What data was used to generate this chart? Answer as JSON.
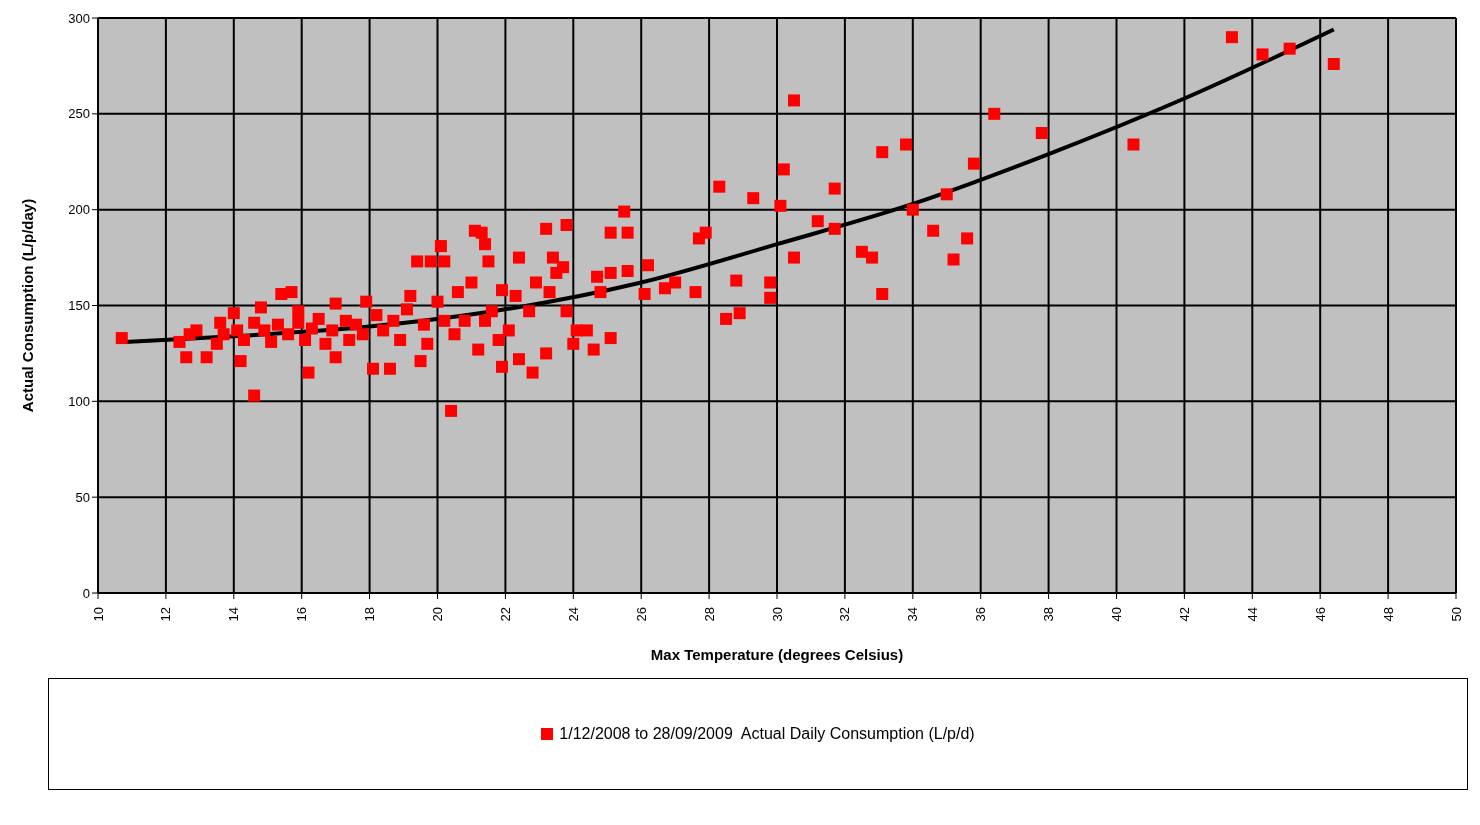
{
  "chart_data": {
    "type": "scatter",
    "xlabel": "Max Temperature (degrees Celsius)",
    "ylabel": "Actual Consumption (L/p/day)",
    "xlim": [
      10,
      50
    ],
    "xticks": [
      10,
      12,
      14,
      16,
      18,
      20,
      22,
      24,
      26,
      28,
      30,
      32,
      34,
      36,
      38,
      40,
      42,
      44,
      46,
      48,
      50
    ],
    "ylim": [
      0,
      300
    ],
    "yticks": [
      0,
      50,
      100,
      150,
      200,
      250,
      300
    ],
    "grid": true,
    "legend": "bottom",
    "series": [
      {
        "name": "1/12/2008 to 28/09/2009  Actual Daily Consumption (L/p/d)",
        "color": "#ff0000",
        "marker": "square",
        "x": [
          10.7,
          12.4,
          12.6,
          12.9,
          13.2,
          13.6,
          14.0,
          14.2,
          14.6,
          14.8,
          15.4,
          15.7,
          15.9,
          16.2,
          17.0,
          17.0,
          17.9,
          18.1,
          18.6,
          19.4,
          19.5,
          19.8,
          20.1,
          20.2,
          20.4,
          21.1,
          21.3,
          21.4,
          21.5,
          21.9,
          21.9,
          22.4,
          22.4,
          22.8,
          23.2,
          23.2,
          23.4,
          23.8,
          23.8,
          24.0,
          24.6,
          25.1,
          25.1,
          25.5,
          25.6,
          26.2,
          26.7,
          27.0,
          27.6,
          27.7,
          27.9,
          28.3,
          28.5,
          28.8,
          28.9,
          29.3,
          29.8,
          29.8,
          30.1,
          30.2,
          30.5,
          30.5,
          31.2,
          31.7,
          31.7,
          32.5,
          32.8,
          33.1,
          33.1,
          33.8,
          34.0,
          34.6,
          35.0,
          35.2,
          35.6,
          35.8,
          36.4,
          37.8,
          40.5,
          43.4,
          44.3,
          45.1,
          46.4,
          12.7,
          13.5,
          13.7,
          14.1,
          14.3,
          14.6,
          14.9,
          15.1,
          15.3,
          15.6,
          15.9,
          16.1,
          16.3,
          16.5,
          16.7,
          16.9,
          17.3,
          17.4,
          17.6,
          17.8,
          18.2,
          18.4,
          18.7,
          18.9,
          19.1,
          19.2,
          19.6,
          19.7,
          20.0,
          20.2,
          20.5,
          20.6,
          20.8,
          21.0,
          21.2,
          21.4,
          21.6,
          21.8,
          22.1,
          22.3,
          22.7,
          22.9,
          23.3,
          23.5,
          23.7,
          24.1,
          24.4,
          24.7,
          24.8,
          25.1,
          25.6,
          26.1
        ],
        "values": [
          133,
          131,
          123,
          137,
          123,
          141,
          146,
          121,
          103,
          149,
          156,
          157,
          147,
          115,
          151,
          123,
          152,
          117,
          117,
          173,
          121,
          173,
          181,
          173,
          95,
          189,
          188,
          182,
          173,
          118,
          158,
          175,
          122,
          115,
          190,
          125,
          175,
          192,
          147,
          130,
          127,
          188,
          133,
          199,
          188,
          171,
          159,
          162,
          157,
          185,
          188,
          212,
          143,
          163,
          146,
          206,
          162,
          154,
          202,
          221,
          257,
          175,
          194,
          211,
          190,
          178,
          175,
          230,
          156,
          234,
          200,
          189,
          208,
          174,
          185,
          224,
          250,
          240,
          234,
          290,
          281,
          284,
          276,
          135,
          130,
          135,
          137,
          132,
          141,
          137,
          131,
          140,
          135,
          141,
          132,
          138,
          143,
          130,
          137,
          142,
          132,
          140,
          135,
          145,
          137,
          142,
          132,
          148,
          155,
          140,
          130,
          152,
          142,
          135,
          157,
          142,
          162,
          127,
          142,
          147,
          132,
          137,
          155,
          147,
          162,
          157,
          167,
          170,
          137,
          137,
          165,
          157,
          167,
          168,
          156
        ]
      },
      {
        "type": "line",
        "color": "#000000",
        "x": [
          10.8,
          14,
          18,
          22,
          26,
          30,
          34,
          38,
          42,
          46.4
        ],
        "values": [
          131,
          134,
          139,
          148,
          162,
          182,
          203,
          229,
          258,
          294
        ]
      }
    ]
  }
}
